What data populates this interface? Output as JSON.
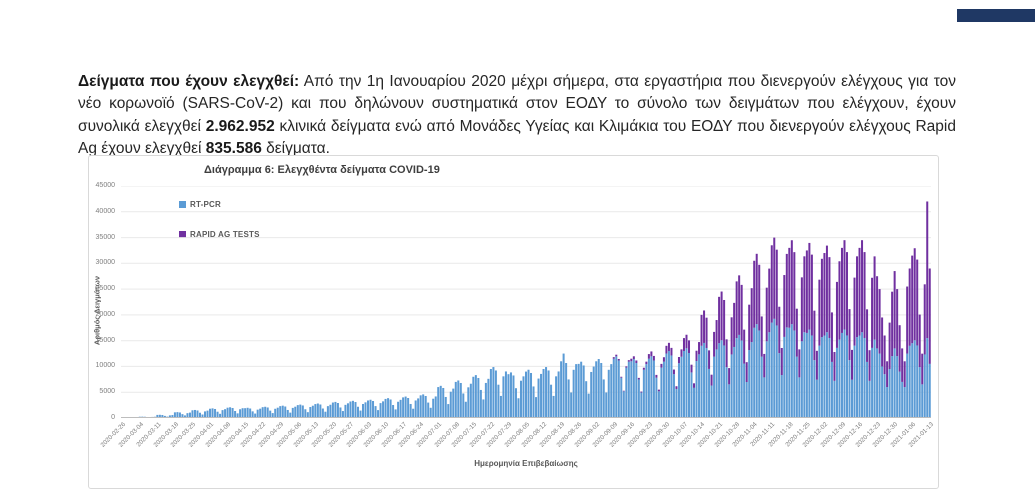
{
  "document": {
    "header_bar_color": "#1f3864",
    "paragraph": {
      "lead_bold": "Δείγματα που έχουν ελεγχθεί:",
      "text_1": " Από την 1η Ιανουαρίου 2020 μέχρι σήμερα, στα εργαστήρια που διενεργούν ελέγχους για τον νέο κορωνοϊό (SARS-CoV-2) και που δηλώνουν συστηματικά στον ΕΟΔΥ το σύνολο των δειγμάτων που ελέγχουν, έχουν συνολικά ελεγχθεί ",
      "total_rt_pcr": "2.962.952",
      "text_2": " κλινικά δείγματα ενώ από Μονάδες Υγείας και Κλιμάκια του ΕΟΔΥ που διενεργούν ελέγχους Rapid Ag έχουν ελεγχθεί ",
      "total_rapid_ag": "835.586",
      "text_3": " δείγματα."
    }
  },
  "chart_data": {
    "type": "bar",
    "stacked": true,
    "title": "Διάγραμμα 6: Ελεγχθέντα δείγματα COVID-19",
    "xlabel": "Ημερομηνία Επιβεβαίωσης",
    "ylabel": "Αριθμός Δειγμάτων",
    "ylim": [
      0,
      45000
    ],
    "yticks": [
      0,
      5000,
      10000,
      15000,
      20000,
      25000,
      30000,
      35000,
      40000,
      45000
    ],
    "grid": true,
    "legend_position": "top-left",
    "x_start_date": "2020-02-26",
    "x_frequency": "daily",
    "x_tick_labels": [
      "2020-02-26",
      "2020-03-04",
      "2020-03-11",
      "2020-03-18",
      "2020-03-25",
      "2020-04-01",
      "2020-04-08",
      "2020-04-15",
      "2020-04-22",
      "2020-04-29",
      "2020-05-06",
      "2020-05-13",
      "2020-05-20",
      "2020-05-27",
      "2020-06-03",
      "2020-06-10",
      "2020-06-17",
      "2020-06-24",
      "2020-07-01",
      "2020-07-08",
      "2020-07-15",
      "2020-07-22",
      "2020-07-29",
      "2020-08-05",
      "2020-08-12",
      "2020-08-19",
      "2020-08-26",
      "2020-09-02",
      "2020-09-09",
      "2020-09-16",
      "2020-09-23",
      "2020-09-30",
      "2020-10-07",
      "2020-10-14",
      "2020-10-21",
      "2020-10-28",
      "2020-11-04",
      "2020-11-11",
      "2020-11-18",
      "2020-11-25",
      "2020-12-02",
      "2020-12-09",
      "2020-12-16",
      "2020-12-23",
      "2020-12-30",
      "2021-01-06",
      "2021-01-13"
    ],
    "series": [
      {
        "name": "RT-PCR",
        "color": "#5b9bd5",
        "values": [
          20,
          30,
          40,
          30,
          20,
          60,
          100,
          250,
          260,
          240,
          170,
          110,
          210,
          240,
          600,
          620,
          580,
          410,
          270,
          510,
          570,
          1100,
          1140,
          1070,
          750,
          500,
          940,
          1050,
          1500,
          1560,
          1460,
          1020,
          680,
          1280,
          1430,
          1800,
          1870,
          1750,
          1220,
          810,
          1530,
          1710,
          2000,
          2080,
          1940,
          1360,
          900,
          1700,
          1900,
          1900,
          1980,
          1840,
          1290,
          860,
          1620,
          1810,
          2100,
          2180,
          2040,
          1430,
          950,
          1790,
          2000,
          2300,
          2390,
          2230,
          1560,
          1040,
          1960,
          2190,
          2500,
          2600,
          2430,
          1700,
          1130,
          2130,
          2380,
          2700,
          2810,
          2620,
          1840,
          1220,
          2300,
          2570,
          3000,
          3120,
          2910,
          2040,
          1350,
          2550,
          2850,
          3200,
          3330,
          3100,
          2180,
          1440,
          2720,
          3040,
          3400,
          3540,
          3300,
          2310,
          1530,
          2890,
          3230,
          3700,
          3850,
          3590,
          2520,
          1670,
          3150,
          3520,
          4000,
          4160,
          3880,
          2720,
          1800,
          3400,
          3800,
          4400,
          4580,
          4270,
          2990,
          1980,
          3740,
          4180,
          6000,
          6240,
          5820,
          4080,
          2700,
          5100,
          5700,
          7000,
          7280,
          6790,
          4760,
          3150,
          5950,
          6650,
          8000,
          8320,
          7760,
          5440,
          3600,
          6800,
          7600,
          9500,
          9880,
          9220,
          6460,
          4280,
          8080,
          9030,
          8500,
          8840,
          8250,
          5780,
          3830,
          7230,
          8080,
          9000,
          9360,
          8730,
          6120,
          4050,
          7650,
          8550,
          9500,
          9880,
          9220,
          6460,
          4280,
          8080,
          9030,
          11000,
          12500,
          10670,
          7480,
          4950,
          9350,
          10450,
          10500,
          10920,
          10190,
          7140,
          4730,
          8930,
          9980,
          11000,
          11440,
          10670,
          7480,
          4950,
          9350,
          10450,
          11500,
          11960,
          11160,
          7820,
          5180,
          9780,
          10930,
          11000,
          11440,
          10670,
          7480,
          4950,
          9350,
          10450,
          11500,
          11960,
          11160,
          7820,
          5180,
          9780,
          10930,
          12500,
          13000,
          12130,
          8500,
          5630,
          10630,
          11880,
          13000,
          13520,
          12610,
          8840,
          5850,
          11050,
          12350,
          14000,
          14560,
          13580,
          9520,
          6300,
          11900,
          13300,
          14500,
          15080,
          14070,
          9860,
          6530,
          12330,
          13780,
          15500,
          16120,
          15040,
          10540,
          6980,
          13180,
          14730,
          17500,
          18200,
          16980,
          11900,
          7880,
          14880,
          16630,
          18500,
          19240,
          17950,
          12580,
          8330,
          15730,
          17580,
          17500,
          18200,
          16980,
          11900,
          7880,
          14880,
          16630,
          16500,
          17160,
          16010,
          11220,
          7430,
          14030,
          15680,
          16000,
          16640,
          15520,
          10880,
          7200,
          13600,
          15200,
          16500,
          17160,
          16010,
          11220,
          7430,
          14030,
          15680,
          16000,
          16640,
          15520,
          10880,
          7200,
          13600,
          15200,
          13500,
          12500,
          10000,
          8500,
          6000,
          9500,
          12000,
          13500,
          12000,
          9000,
          7000,
          6000,
          12500,
          14000,
          14500,
          15080,
          14070,
          9860,
          6530,
          12330,
          15500,
          10500
        ]
      },
      {
        "name": "RAPID AG TESTS",
        "color": "#7030a0",
        "values": [
          0,
          0,
          0,
          0,
          0,
          0,
          0,
          0,
          0,
          0,
          0,
          0,
          0,
          0,
          0,
          0,
          0,
          0,
          0,
          0,
          0,
          0,
          0,
          0,
          0,
          0,
          0,
          0,
          0,
          0,
          0,
          0,
          0,
          0,
          0,
          0,
          0,
          0,
          0,
          0,
          0,
          0,
          0,
          0,
          0,
          0,
          0,
          0,
          0,
          0,
          0,
          0,
          0,
          0,
          0,
          0,
          0,
          0,
          0,
          0,
          0,
          0,
          0,
          0,
          0,
          0,
          0,
          0,
          0,
          0,
          0,
          0,
          0,
          0,
          0,
          0,
          0,
          0,
          0,
          0,
          0,
          0,
          0,
          0,
          0,
          0,
          0,
          0,
          0,
          0,
          0,
          0,
          0,
          0,
          0,
          0,
          0,
          0,
          0,
          0,
          0,
          0,
          0,
          0,
          0,
          0,
          0,
          0,
          0,
          0,
          0,
          0,
          0,
          0,
          0,
          0,
          0,
          0,
          0,
          0,
          0,
          0,
          0,
          0,
          0,
          0,
          0,
          0,
          0,
          0,
          0,
          0,
          0,
          0,
          0,
          0,
          0,
          0,
          0,
          0,
          0,
          0,
          0,
          0,
          0,
          0,
          0,
          0,
          0,
          0,
          0,
          0,
          0,
          0,
          0,
          0,
          0,
          0,
          0,
          0,
          0,
          0,
          0,
          0,
          0,
          0,
          0,
          0,
          0,
          0,
          0,
          0,
          0,
          0,
          0,
          0,
          0,
          0,
          0,
          0,
          0,
          0,
          0,
          0,
          0,
          0,
          0,
          0,
          0,
          0,
          0,
          0,
          0,
          0,
          0,
          0,
          300,
          320,
          290,
          180,
          110,
          240,
          290,
          500,
          530,
          490,
          300,
          180,
          400,
          480,
          900,
          950,
          880,
          540,
          320,
          720,
          860,
          1500,
          1580,
          1470,
          900,
          530,
          1200,
          1430,
          2500,
          2630,
          2450,
          1500,
          880,
          2000,
          2380,
          6000,
          6300,
          5880,
          3600,
          2100,
          4800,
          5700,
          9000,
          9450,
          8820,
          5400,
          3150,
          7200,
          8550,
          11000,
          11550,
          10780,
          6600,
          3850,
          8800,
          10450,
          13000,
          13650,
          12740,
          7800,
          4550,
          10400,
          12350,
          15000,
          15750,
          14700,
          9000,
          5250,
          12000,
          14250,
          15500,
          16280,
          15190,
          9300,
          5430,
          12400,
          14730,
          16000,
          16800,
          15680,
          9600,
          5600,
          12800,
          15200,
          16000,
          16800,
          15680,
          9600,
          5600,
          12800,
          15200,
          16500,
          17330,
          16170,
          9900,
          5780,
          13200,
          15680,
          17000,
          17850,
          16660,
          10200,
          5950,
          13600,
          16150,
          14000,
          12500,
          9500,
          7500,
          5000,
          9000,
          12500,
          15000,
          13000,
          9000,
          6500,
          5000,
          13000,
          15000,
          17000,
          17850,
          16660,
          10200,
          5950,
          13600,
          26500,
          18500
        ]
      }
    ]
  }
}
